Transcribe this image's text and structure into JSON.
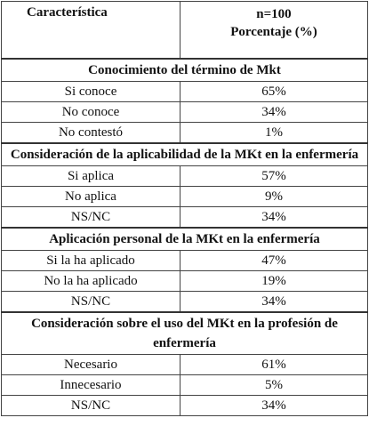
{
  "header": {
    "col1": "Característica",
    "col2_line1": "n=100",
    "col2_line2": "Porcentaje (%)"
  },
  "sections": [
    {
      "title": "Conocimiento del término de Mkt",
      "rows": [
        [
          "Si conoce",
          "65%"
        ],
        [
          "No conoce",
          "34%"
        ],
        [
          "No contestó",
          "1%"
        ]
      ]
    },
    {
      "title": "Consideración de la aplicabilidad de la MKt en la enfermería",
      "rows": [
        [
          "Si aplica",
          "57%"
        ],
        [
          "No aplica",
          "9%"
        ],
        [
          "NS/NC",
          "34%"
        ]
      ]
    },
    {
      "title": "Aplicación personal de la MKt en la enfermería",
      "rows": [
        [
          "Si la ha aplicado",
          "47%"
        ],
        [
          "No la ha aplicado",
          "19%"
        ],
        [
          "NS/NC",
          "34%"
        ]
      ]
    },
    {
      "title": "Consideración sobre el uso del MKt en la profesión de enfermería",
      "rows": [
        [
          "Necesario",
          "61%"
        ],
        [
          "Innecesario",
          "5%"
        ],
        [
          "NS/NC",
          "34%"
        ]
      ]
    }
  ]
}
